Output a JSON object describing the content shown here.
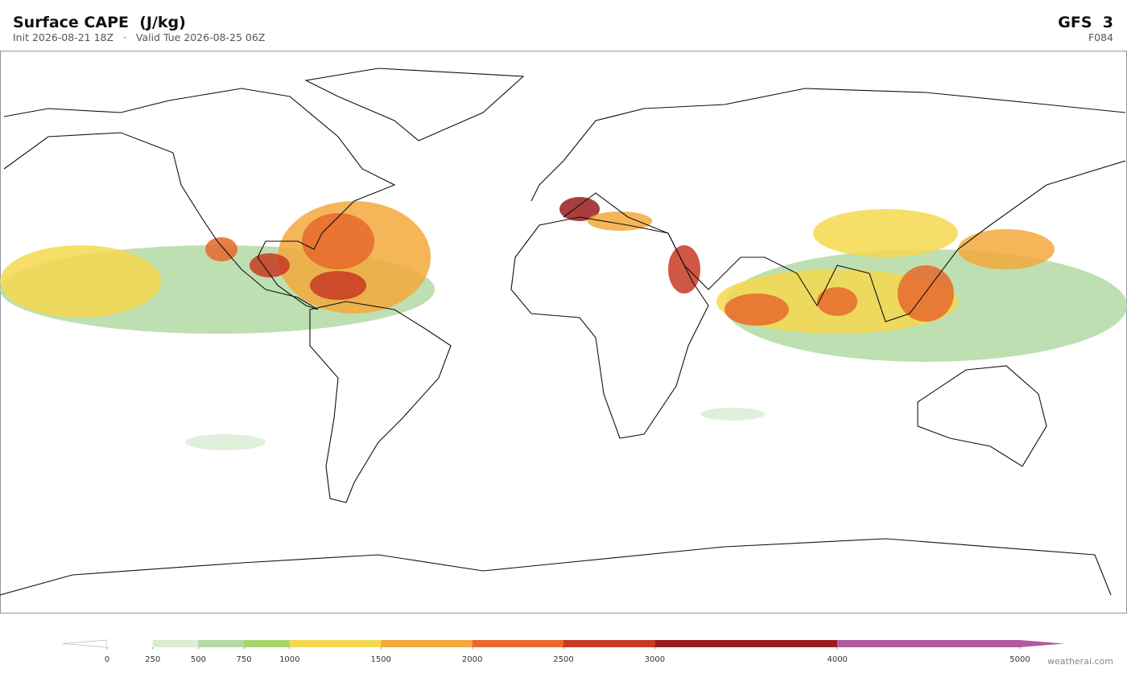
{
  "header": {
    "title": "Surface CAPE  (J/kg)",
    "subtitle": "Init 2026-08-21 18Z   ·   Valid Tue 2026-08-25 06Z",
    "model": "GFS  3",
    "forecast_hour": "F084"
  },
  "colorbar": {
    "levels": [
      0,
      250,
      500,
      750,
      1000,
      1500,
      2000,
      2500,
      3000,
      4000,
      5000
    ],
    "colors": [
      "#ffffff",
      "#d9edd3",
      "#b3d9a3",
      "#a6d46a",
      "#f5d84f",
      "#f2a93b",
      "#e8692c",
      "#c83a23",
      "#9b1b1e",
      "#b05aa0"
    ],
    "over_color": "#b05aa0"
  },
  "watermark": "weatherai.com"
}
